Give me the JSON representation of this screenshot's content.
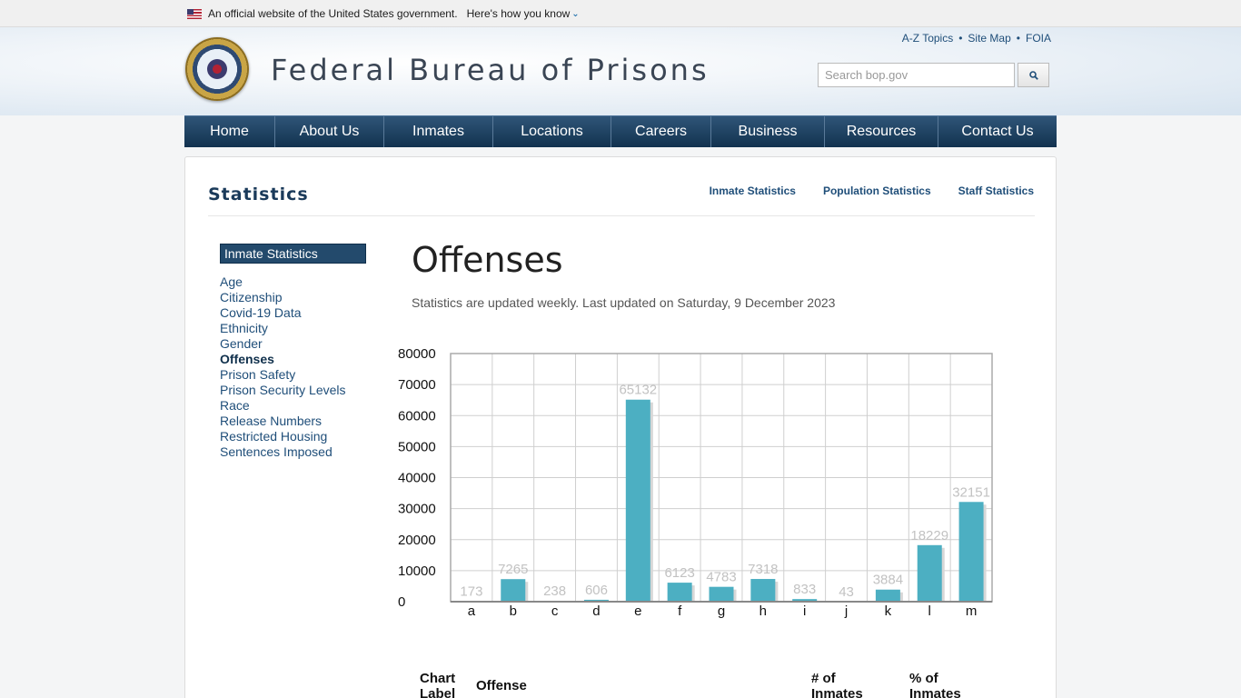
{
  "gov_banner": {
    "text": "An official website of the United States government.",
    "link": "Here's how you know"
  },
  "header": {
    "title": "Federal Bureau of Prisons",
    "util_links": [
      "A-Z Topics",
      "Site Map",
      "FOIA"
    ],
    "search_placeholder": "Search bop.gov"
  },
  "nav": [
    "Home",
    "About Us",
    "Inmates",
    "Locations",
    "Careers",
    "Business",
    "Resources",
    "Contact Us"
  ],
  "section": {
    "title": "Statistics",
    "sub_nav": [
      "Inmate Statistics",
      "Population Statistics",
      "Staff Statistics"
    ]
  },
  "sidebar": {
    "heading": "Inmate Statistics",
    "items": [
      "Age",
      "Citizenship",
      "Covid-19 Data",
      "Ethnicity",
      "Gender",
      "Offenses",
      "Prison Safety",
      "Prison Security Levels",
      "Race",
      "Release Numbers",
      "Restricted Housing",
      "Sentences Imposed"
    ],
    "active": "Offenses"
  },
  "main": {
    "heading": "Offenses",
    "updated": "Statistics are updated weekly. Last updated on Saturday, 9 December 2023"
  },
  "table": {
    "headers": [
      "Chart Label",
      "Offense",
      "# of Inmates",
      "% of Inmates"
    ]
  },
  "colors": {
    "bar": "#4cafc2",
    "nav": "#1d3f60",
    "accent": "#1f4e79"
  },
  "chart_data": {
    "type": "bar",
    "categories": [
      "a",
      "b",
      "c",
      "d",
      "e",
      "f",
      "g",
      "h",
      "i",
      "j",
      "k",
      "l",
      "m"
    ],
    "values": [
      173,
      7265,
      238,
      606,
      65132,
      6123,
      4783,
      7318,
      833,
      43,
      3884,
      18229,
      32151
    ],
    "y_ticks": [
      0,
      10000,
      20000,
      30000,
      40000,
      50000,
      60000,
      70000,
      80000
    ],
    "ylim": [
      0,
      80000
    ],
    "grid": true
  }
}
